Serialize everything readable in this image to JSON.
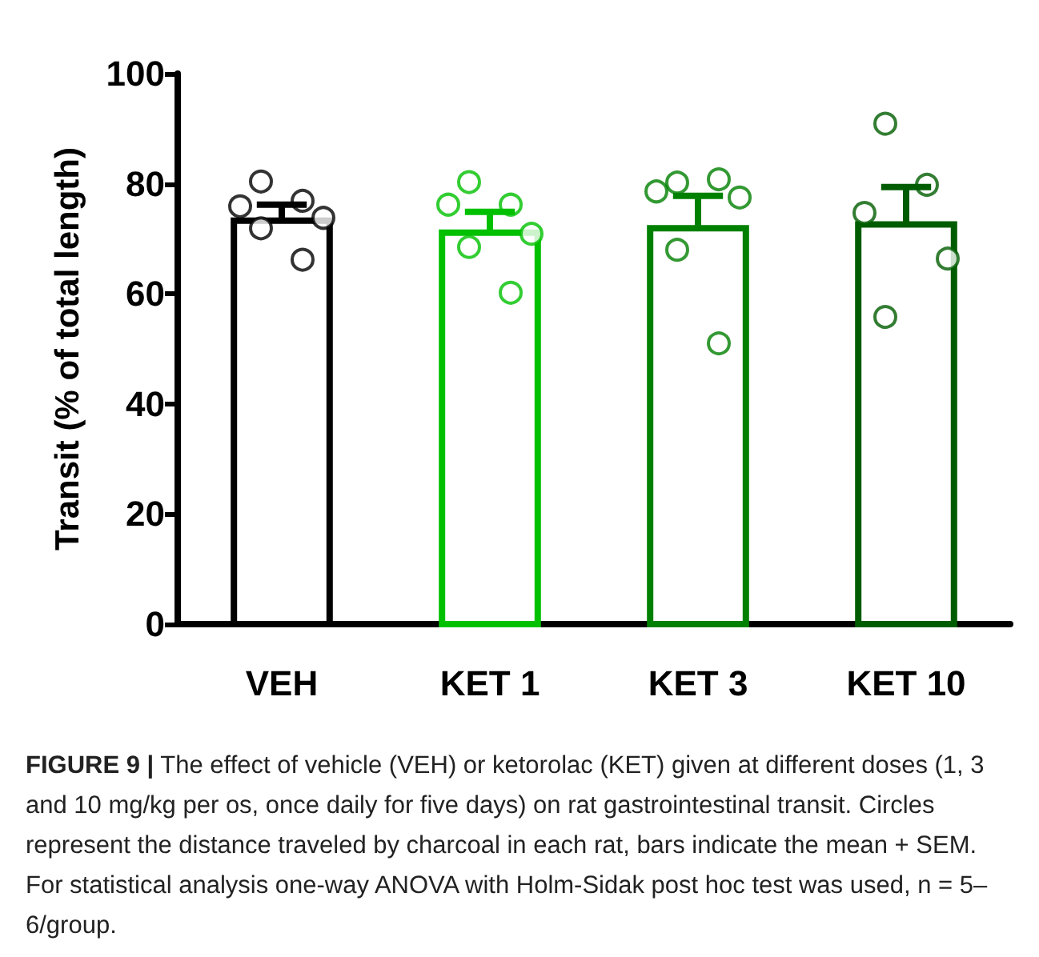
{
  "chart_data": {
    "type": "bar",
    "ylabel": "Transit (% of total length)",
    "categories": [
      "VEH",
      "KET 1",
      "KET 3",
      "KET 10"
    ],
    "values": [
      73.3,
      71.1,
      71.9,
      72.6
    ],
    "colors": [
      "#000000",
      "#00c000",
      "#008000",
      "#005c00"
    ],
    "errors": [
      [
        73.3,
        76.2
      ],
      [
        71.1,
        74.9
      ],
      [
        71.9,
        77.8
      ],
      [
        72.6,
        79.4
      ]
    ],
    "series": [
      {
        "type": "scatter",
        "color": "#000000",
        "x": [
          "VEH",
          "VEH",
          "VEH",
          "VEH",
          "VEH",
          "VEH"
        ],
        "values": [
          80.4,
          76.9,
          75.9,
          73.8,
          71.9,
          66.2
        ]
      },
      {
        "type": "scatter",
        "color": "#00c000",
        "x": [
          "KET 1",
          "KET 1",
          "KET 1",
          "KET 1",
          "KET 1",
          "KET 1"
        ],
        "values": [
          80.3,
          76.2,
          76.2,
          70.9,
          68.5,
          60.2
        ]
      },
      {
        "type": "scatter",
        "color": "#008000",
        "x": [
          "KET 3",
          "KET 3",
          "KET 3",
          "KET 3",
          "KET 3",
          "KET 3"
        ],
        "values": [
          80.2,
          80.8,
          78.6,
          77.5,
          68.0,
          51.0
        ]
      },
      {
        "type": "scatter",
        "color": "#005c00",
        "x": [
          "KET 10",
          "KET 10",
          "KET 10",
          "KET 10",
          "KET 10"
        ],
        "values": [
          90.9,
          79.8,
          74.7,
          66.4,
          55.8
        ]
      }
    ],
    "ylim": [
      0,
      100
    ],
    "yticks": [
      0,
      20,
      40,
      60,
      80,
      100
    ],
    "marker": "circle",
    "grid": false,
    "annotations": [
      "FIGURE 9 | The effect of vehicle (VEH) or ketorolac (KET) given at different doses (1, 3 and 10 mg/kg per os, once daily for five days) on rat gastrointestinal transit. Circles represent the distance traveled by charcoal in each rat, bars indicate the mean + SEM. For statistical analysis one-way ANOVA with Holm-Sidak post hoc test was used, n = 5–6/group."
    ]
  }
}
